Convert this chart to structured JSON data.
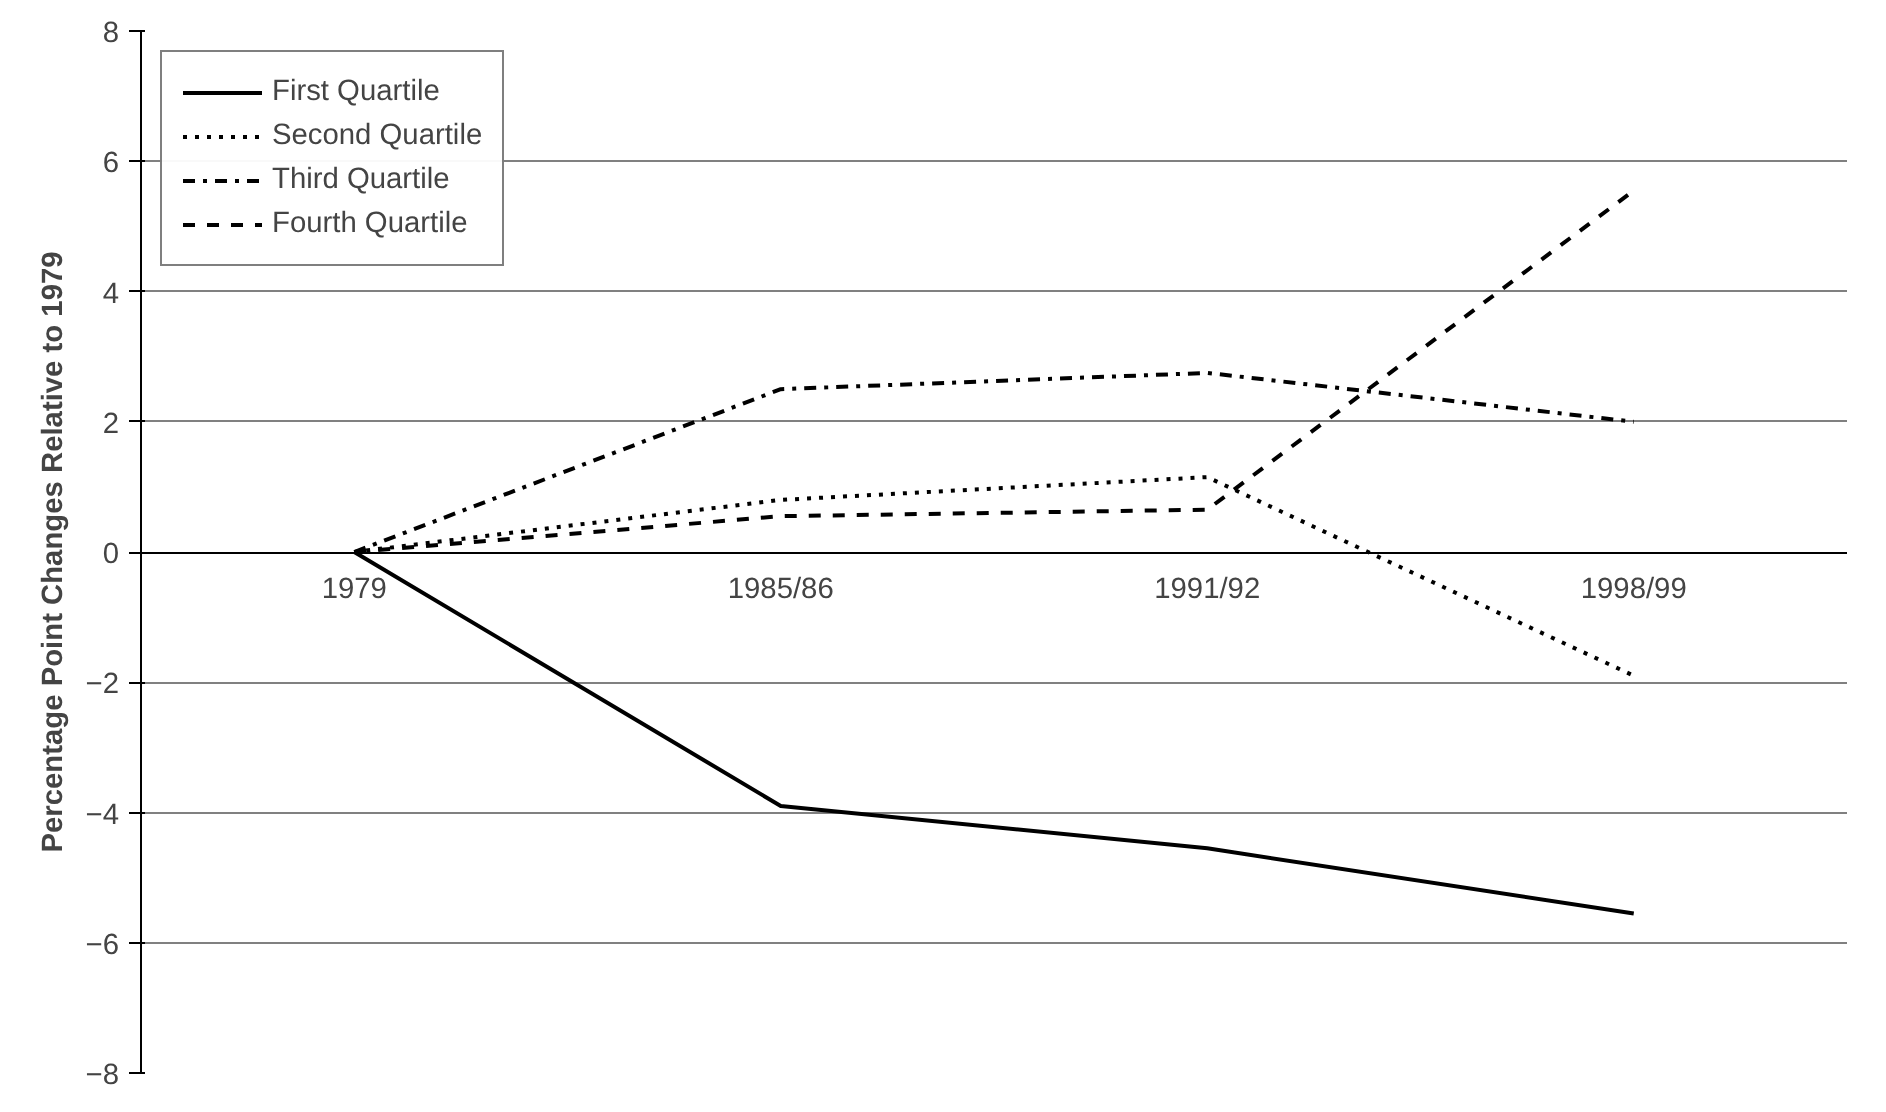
{
  "chart_data": {
    "type": "line",
    "ylabel": "Percentage Point Changes Relative to 1979",
    "categories": [
      "1979",
      "1985/86",
      "1991/92",
      "1998/99"
    ],
    "series": [
      {
        "name": "First Quartile",
        "color": "#000000",
        "line_style": "solid",
        "values": [
          0,
          -3.9,
          -4.55,
          -5.55
        ]
      },
      {
        "name": "Second Quartile",
        "color": "#000000",
        "line_style": "dotted",
        "values": [
          0,
          0.8,
          1.15,
          -1.9
        ]
      },
      {
        "name": "Third Quartile",
        "color": "#000000",
        "line_style": "dashdot",
        "values": [
          0,
          2.5,
          2.75,
          2.0
        ]
      },
      {
        "name": "Fourth Quartile",
        "color": "#000000",
        "line_style": "dashed",
        "values": [
          0,
          0.55,
          0.65,
          5.55
        ]
      }
    ],
    "ylim": [
      -8,
      8
    ],
    "yticks": [
      -8,
      -6,
      -4,
      -2,
      0,
      2,
      4,
      6,
      8
    ],
    "grid": "y",
    "legend": "top left",
    "marker": "none"
  }
}
